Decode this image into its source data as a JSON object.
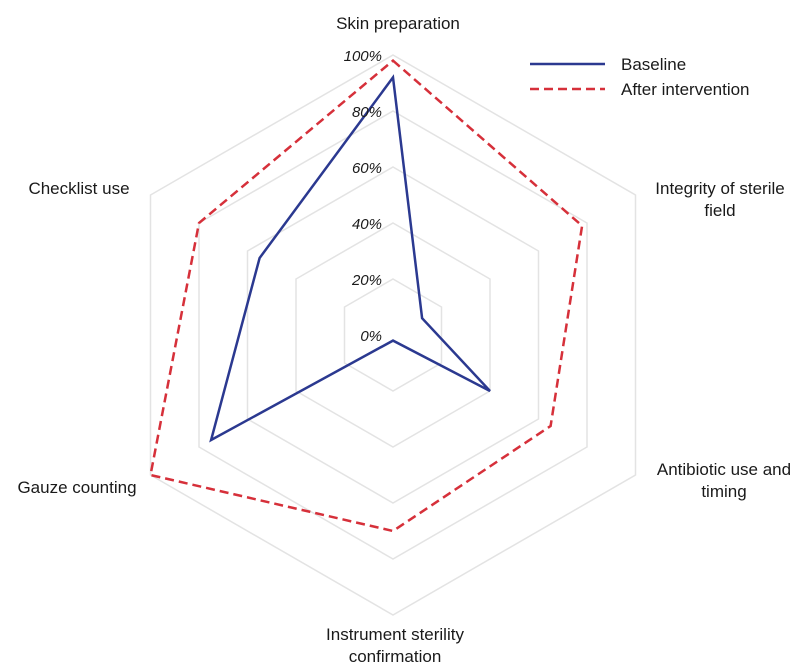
{
  "chart_data": {
    "type": "radar",
    "axes": [
      "Skin preparation",
      "Integrity of sterile field",
      "Antibiotic use and timing",
      "Instrument sterility confirmation",
      "Gauze counting",
      "Checklist use"
    ],
    "axis_label_lines": [
      [
        "Skin preparation"
      ],
      [
        "Integrity of sterile",
        "field"
      ],
      [
        "Antibiotic use and",
        "timing"
      ],
      [
        "Instrument sterility",
        "confirmation"
      ],
      [
        "Gauze counting"
      ],
      [
        "Checklist use"
      ]
    ],
    "r_ticks": [
      "0%",
      "20%",
      "40%",
      "60%",
      "80%",
      "100%"
    ],
    "r_range": [
      0,
      100
    ],
    "grid": true,
    "legend_position": "top-right",
    "series": [
      {
        "name": "Baseline",
        "values": [
          92,
          12,
          40,
          2,
          75,
          55
        ],
        "color": "#2b3990",
        "line_style": "solid"
      },
      {
        "name": "After intervention",
        "values": [
          98,
          78,
          65,
          70,
          100,
          80
        ],
        "color": "#d6303a",
        "line_style": "dashed"
      }
    ]
  }
}
